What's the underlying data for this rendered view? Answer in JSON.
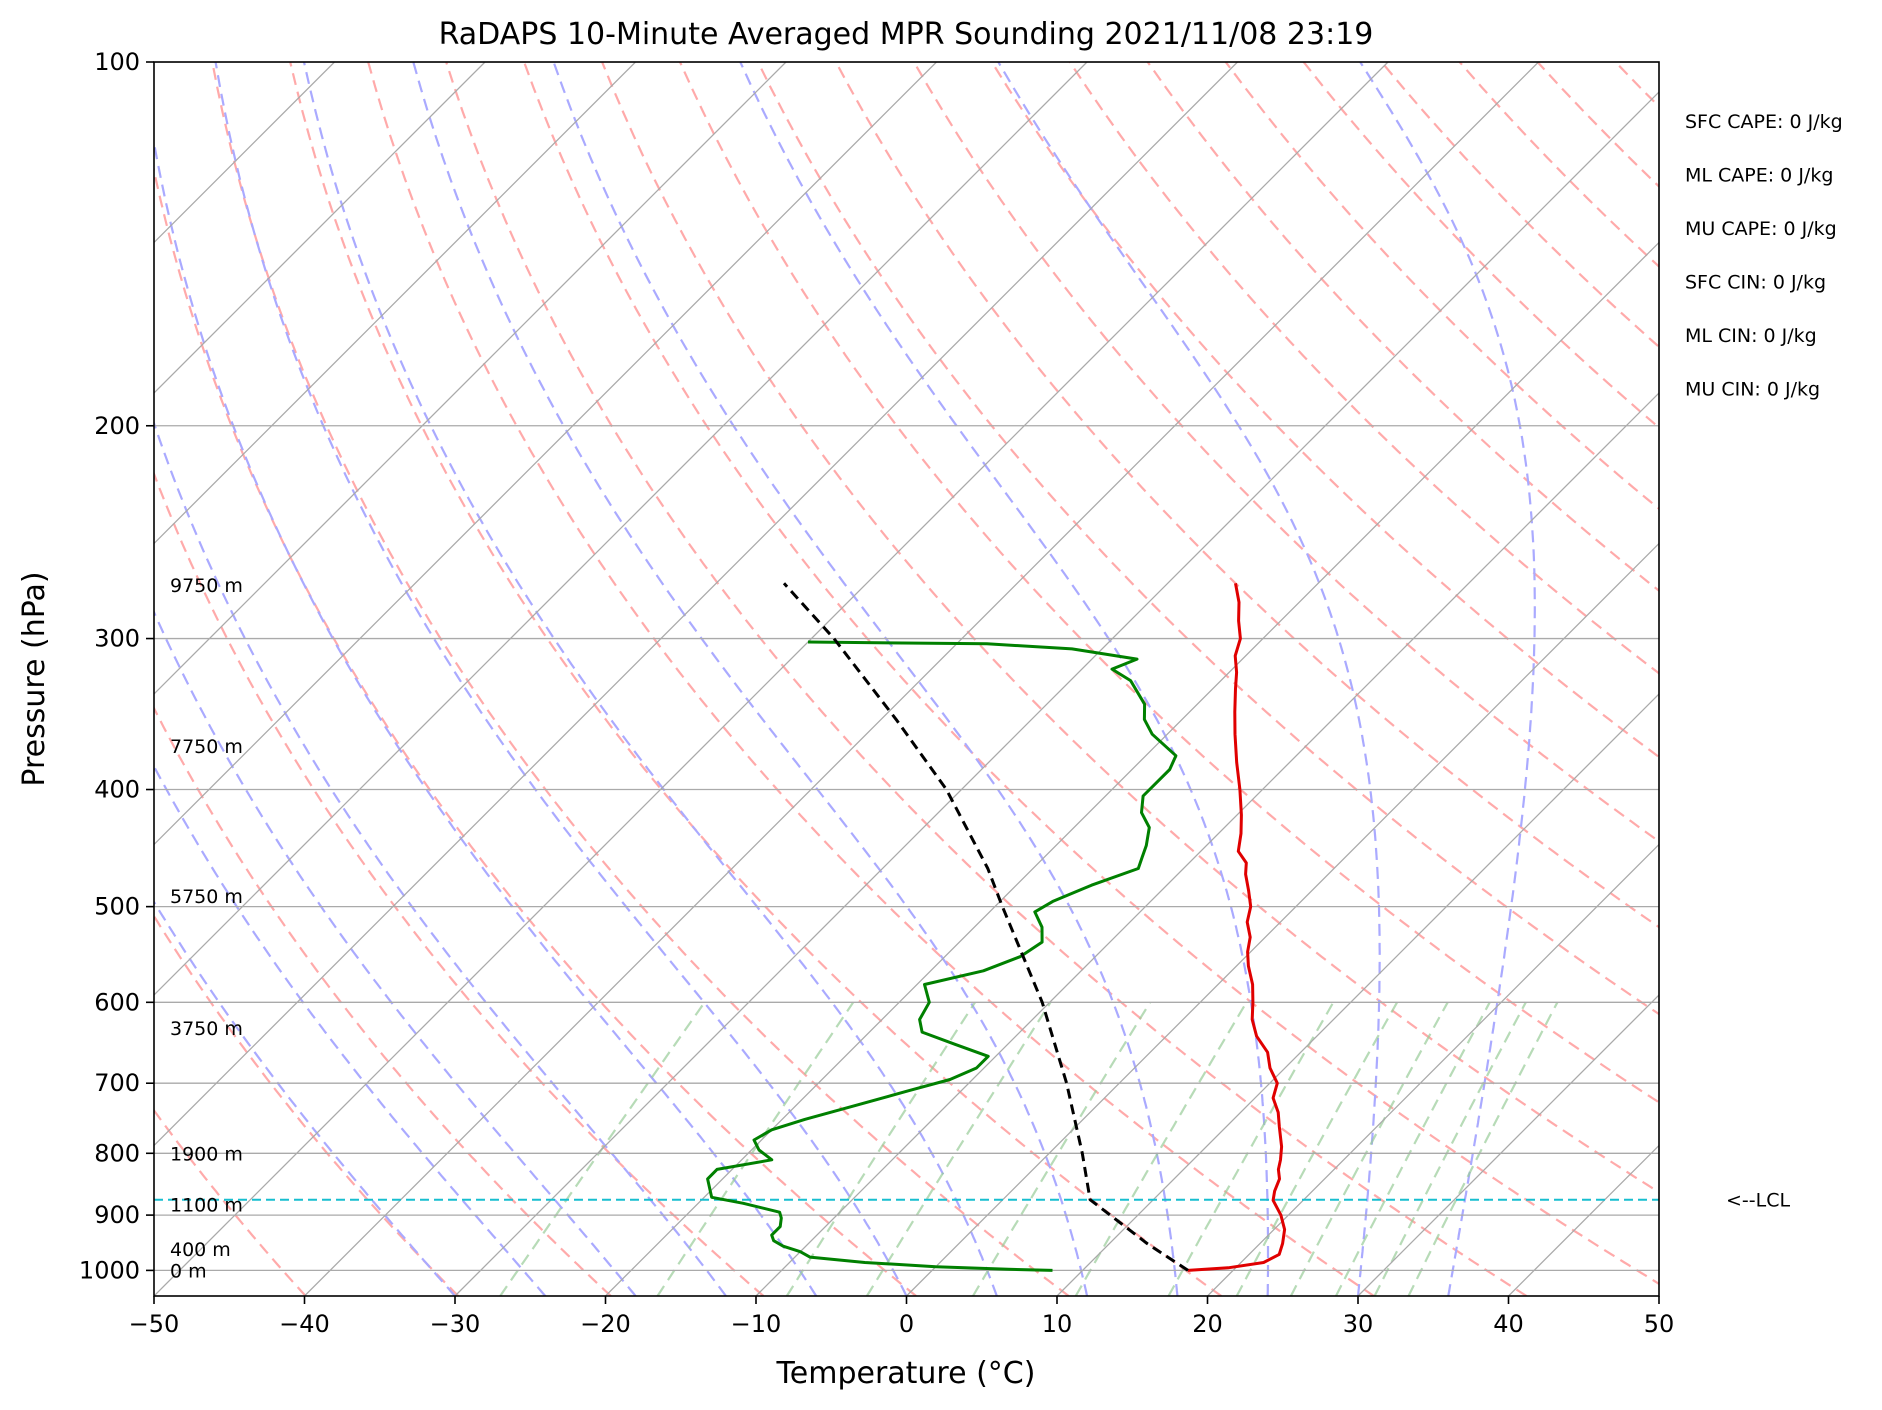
{
  "chart_data": {
    "type": "line",
    "subtype": "skew-T log-P",
    "title": "RaDAPS 10-Minute Averaged MPR Sounding 2021/11/08 23:19",
    "xlabel": "Temperature (°C)",
    "ylabel": "Pressure (hPa)",
    "xlim": [
      -50,
      50
    ],
    "ylim": [
      1050,
      100
    ],
    "y_scale": "log",
    "grid": true,
    "x_ticks": [
      -50,
      -40,
      -30,
      -20,
      -10,
      0,
      10,
      20,
      30,
      40,
      50
    ],
    "x_tick_labels": [
      "−50",
      "−40",
      "−30",
      "−20",
      "−10",
      "0",
      "10",
      "20",
      "30",
      "40",
      "50"
    ],
    "y_ticks": [
      100,
      200,
      300,
      400,
      500,
      600,
      700,
      800,
      900,
      1000
    ],
    "y_tick_labels": [
      "100",
      "200",
      "300",
      "400",
      "500",
      "600",
      "700",
      "800",
      "900",
      "1000"
    ],
    "background_lines": {
      "isotherms_color": "#aaaaaa",
      "dry_adiabats_color": "#ffaaaa",
      "moist_adiabats_color": "#aaaaff",
      "mixing_ratio_color": "#99cc99"
    },
    "series": [
      {
        "color": "#e00000",
        "points": [
          {
            "p": 1000,
            "t": 17.0
          },
          {
            "p": 995,
            "t": 19.5
          },
          {
            "p": 985,
            "t": 21.5
          },
          {
            "p": 970,
            "t": 22.0
          },
          {
            "p": 950,
            "t": 21.5
          },
          {
            "p": 925,
            "t": 20.7
          },
          {
            "p": 900,
            "t": 19.5
          },
          {
            "p": 875,
            "t": 18.0
          },
          {
            "p": 860,
            "t": 17.5
          },
          {
            "p": 840,
            "t": 17.0
          },
          {
            "p": 825,
            "t": 16.3
          },
          {
            "p": 810,
            "t": 15.8
          },
          {
            "p": 790,
            "t": 15.0
          },
          {
            "p": 760,
            "t": 13.5
          },
          {
            "p": 740,
            "t": 12.5
          },
          {
            "p": 720,
            "t": 11.2
          },
          {
            "p": 700,
            "t": 10.5
          },
          {
            "p": 680,
            "t": 9.0
          },
          {
            "p": 660,
            "t": 7.8
          },
          {
            "p": 640,
            "t": 6.0
          },
          {
            "p": 620,
            "t": 4.6
          },
          {
            "p": 600,
            "t": 3.5
          },
          {
            "p": 580,
            "t": 2.3
          },
          {
            "p": 560,
            "t": 0.8
          },
          {
            "p": 545,
            "t": -0.2
          },
          {
            "p": 530,
            "t": -1.0
          },
          {
            "p": 515,
            "t": -2.2
          },
          {
            "p": 500,
            "t": -3.0
          },
          {
            "p": 485,
            "t": -4.2
          },
          {
            "p": 470,
            "t": -5.5
          },
          {
            "p": 460,
            "t": -6.2
          },
          {
            "p": 450,
            "t": -7.5
          },
          {
            "p": 435,
            "t": -8.5
          },
          {
            "p": 420,
            "t": -9.7
          },
          {
            "p": 400,
            "t": -11.5
          },
          {
            "p": 380,
            "t": -13.5
          },
          {
            "p": 360,
            "t": -15.5
          },
          {
            "p": 345,
            "t": -17.0
          },
          {
            "p": 330,
            "t": -18.5
          },
          {
            "p": 320,
            "t": -19.5
          },
          {
            "p": 310,
            "t": -20.7
          },
          {
            "p": 300,
            "t": -21.5
          },
          {
            "p": 290,
            "t": -22.8
          },
          {
            "p": 280,
            "t": -24.0
          },
          {
            "p": 270,
            "t": -25.5
          }
        ]
      },
      {
        "color": "#008000",
        "points": [
          {
            "p": 1000,
            "t": 8.0
          },
          {
            "p": 998,
            "t": 5.0
          },
          {
            "p": 993,
            "t": 0.0
          },
          {
            "p": 985,
            "t": -5.0
          },
          {
            "p": 975,
            "t": -9.0
          },
          {
            "p": 965,
            "t": -10.0
          },
          {
            "p": 955,
            "t": -11.5
          },
          {
            "p": 945,
            "t": -12.5
          },
          {
            "p": 935,
            "t": -13.0
          },
          {
            "p": 920,
            "t": -13.0
          },
          {
            "p": 905,
            "t": -13.5
          },
          {
            "p": 895,
            "t": -14.0
          },
          {
            "p": 880,
            "t": -17.0
          },
          {
            "p": 870,
            "t": -19.5
          },
          {
            "p": 860,
            "t": -20.0
          },
          {
            "p": 840,
            "t": -21.0
          },
          {
            "p": 825,
            "t": -21.0
          },
          {
            "p": 810,
            "t": -18.0
          },
          {
            "p": 795,
            "t": -19.5
          },
          {
            "p": 780,
            "t": -20.5
          },
          {
            "p": 765,
            "t": -20.0
          },
          {
            "p": 750,
            "t": -18.5
          },
          {
            "p": 730,
            "t": -16.0
          },
          {
            "p": 710,
            "t": -13.5
          },
          {
            "p": 695,
            "t": -11.5
          },
          {
            "p": 680,
            "t": -10.5
          },
          {
            "p": 665,
            "t": -10.5
          },
          {
            "p": 650,
            "t": -13.5
          },
          {
            "p": 635,
            "t": -16.5
          },
          {
            "p": 620,
            "t": -17.5
          },
          {
            "p": 600,
            "t": -18.0
          },
          {
            "p": 580,
            "t": -19.5
          },
          {
            "p": 565,
            "t": -16.5
          },
          {
            "p": 550,
            "t": -15.0
          },
          {
            "p": 535,
            "t": -14.5
          },
          {
            "p": 520,
            "t": -15.5
          },
          {
            "p": 505,
            "t": -17.0
          },
          {
            "p": 495,
            "t": -16.5
          },
          {
            "p": 480,
            "t": -15.0
          },
          {
            "p": 465,
            "t": -13.0
          },
          {
            "p": 455,
            "t": -13.5
          },
          {
            "p": 445,
            "t": -14.0
          },
          {
            "p": 430,
            "t": -15.0
          },
          {
            "p": 418,
            "t": -16.5
          },
          {
            "p": 405,
            "t": -17.5
          },
          {
            "p": 395,
            "t": -17.5
          },
          {
            "p": 385,
            "t": -17.5
          },
          {
            "p": 375,
            "t": -18.0
          },
          {
            "p": 360,
            "t": -21.0
          },
          {
            "p": 350,
            "t": -22.5
          },
          {
            "p": 340,
            "t": -23.5
          },
          {
            "p": 325,
            "t": -26.0
          },
          {
            "p": 318,
            "t": -28.0
          },
          {
            "p": 312,
            "t": -27.0
          },
          {
            "p": 306,
            "t": -32.0
          },
          {
            "p": 303,
            "t": -38.0
          },
          {
            "p": 302,
            "t": -50.0
          }
        ]
      },
      {
        "color": "#000000",
        "dash": true,
        "points": [
          {
            "p": 1000,
            "t": 17.0
          },
          {
            "p": 950,
            "t": 12.5
          },
          {
            "p": 874,
            "t": 5.8
          },
          {
            "p": 800,
            "t": 2.2
          },
          {
            "p": 700,
            "t": -3.5
          },
          {
            "p": 600,
            "t": -10.5
          },
          {
            "p": 500,
            "t": -19.5
          },
          {
            "p": 465,
            "t": -23.0
          },
          {
            "p": 400,
            "t": -31.0
          },
          {
            "p": 350,
            "t": -39.0
          },
          {
            "p": 300,
            "t": -48.5
          },
          {
            "p": 270,
            "t": -55.5
          }
        ]
      }
    ],
    "lcl": {
      "p": 874,
      "label": "<--LCL",
      "color": "#17becf"
    },
    "height_labels": [
      {
        "p": 1000,
        "label": "0 m"
      },
      {
        "p": 960,
        "label": "400 m"
      },
      {
        "p": 882,
        "label": "1100 m"
      },
      {
        "p": 800,
        "label": "1900 m"
      },
      {
        "p": 630,
        "label": "3750 m"
      },
      {
        "p": 490,
        "label": "5750 m"
      },
      {
        "p": 368,
        "label": "7750 m"
      },
      {
        "p": 271,
        "label": "9750 m"
      }
    ],
    "indices": [
      "SFC CAPE: 0 J/kg",
      "ML CAPE: 0 J/kg",
      "MU CAPE: 0 J/kg",
      "SFC CIN: 0 J/kg",
      "ML CIN: 0 J/kg",
      "MU CIN: 0 J/kg"
    ]
  }
}
